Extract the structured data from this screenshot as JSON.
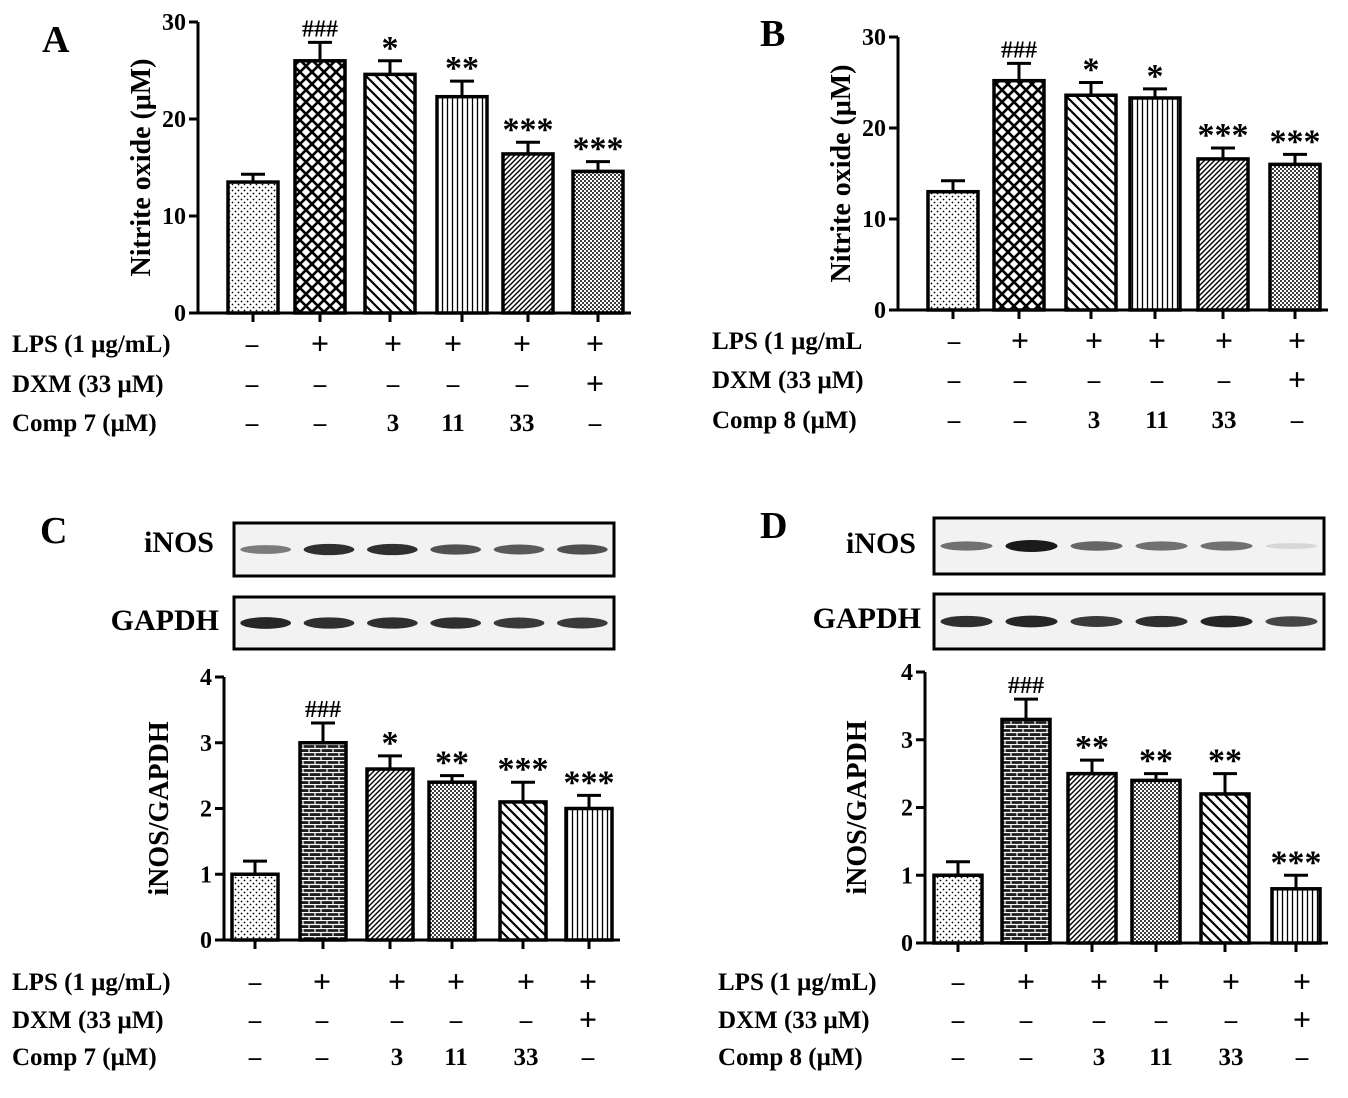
{
  "figure_labels": {
    "A": "A",
    "B": "B",
    "C": "C",
    "D": "D"
  },
  "colors": {
    "ink": "#000000",
    "bg": "#ffffff",
    "band": "#1a1a1a",
    "blot_bg": "#f2f2f2"
  },
  "chart_data": [
    {
      "id": "A",
      "type": "bar",
      "ylabel": "Nitrite oxide (μM)",
      "ylim": [
        0,
        30
      ],
      "yticks": [
        0,
        10,
        20,
        30
      ],
      "values": [
        13.5,
        26.0,
        24.6,
        22.3,
        16.4,
        14.6
      ],
      "errors": [
        0.8,
        1.9,
        1.4,
        1.6,
        1.2,
        1.0
      ],
      "sig": [
        "",
        "###",
        "*",
        "**",
        "***",
        "***"
      ],
      "patterns": [
        "dots",
        "crosshatch",
        "diag-back",
        "vertical",
        "diag-fine",
        "dense-dots"
      ],
      "conditions": [
        {
          "label": "LPS (1 μg/mL)",
          "values": [
            "-",
            "+",
            "+",
            "+",
            "+",
            "+"
          ]
        },
        {
          "label": "DXM (33 μM)",
          "values": [
            "-",
            "-",
            "-",
            "-",
            "-",
            "+"
          ]
        },
        {
          "label": "Comp 7 (μM)",
          "values": [
            "-",
            "-",
            "3",
            "11",
            "33",
            "-"
          ]
        }
      ]
    },
    {
      "id": "B",
      "type": "bar",
      "ylabel": "Nitrite oxide (μM)",
      "ylim": [
        0,
        30
      ],
      "yticks": [
        0,
        10,
        20,
        30
      ],
      "values": [
        13.0,
        25.2,
        23.6,
        23.3,
        16.6,
        16.0
      ],
      "errors": [
        1.2,
        1.9,
        1.4,
        1.0,
        1.2,
        1.1
      ],
      "sig": [
        "",
        "###",
        "*",
        "*",
        "***",
        "***"
      ],
      "patterns": [
        "dots",
        "crosshatch",
        "diag-back",
        "vertical",
        "diag-fine",
        "dense-dots"
      ],
      "conditions": [
        {
          "label": "LPS (1 μg/mL",
          "values": [
            "-",
            "+",
            "+",
            "+",
            "+",
            "+"
          ]
        },
        {
          "label": "DXM (33 μM)",
          "values": [
            "-",
            "-",
            "-",
            "-",
            "-",
            "+"
          ]
        },
        {
          "label": "Comp 8 (μM)",
          "values": [
            "-",
            "-",
            "3",
            "11",
            "33",
            "-"
          ]
        }
      ]
    },
    {
      "id": "C",
      "type": "bar",
      "ylabel": "iNOS/GAPDH",
      "ylim": [
        0,
        4
      ],
      "yticks": [
        0,
        1,
        2,
        3,
        4
      ],
      "values": [
        1.0,
        3.0,
        2.6,
        2.4,
        2.1,
        2.0
      ],
      "errors": [
        0.2,
        0.3,
        0.2,
        0.1,
        0.3,
        0.2
      ],
      "sig": [
        "",
        "###",
        "*",
        "**",
        "***",
        "***"
      ],
      "patterns": [
        "dots",
        "brick",
        "diag-fine",
        "dense-dots",
        "diag-back",
        "vertical"
      ],
      "blot": {
        "rows": [
          {
            "label": "iNOS",
            "intensities": [
              0.55,
              0.9,
              0.9,
              0.75,
              0.7,
              0.75
            ]
          },
          {
            "label": "GAPDH",
            "intensities": [
              0.95,
              0.9,
              0.9,
              0.9,
              0.85,
              0.85
            ]
          }
        ]
      },
      "conditions": [
        {
          "label": "LPS (1 μg/mL)",
          "values": [
            "-",
            "+",
            "+",
            "+",
            "+",
            "+"
          ]
        },
        {
          "label": "DXM (33 μM)",
          "values": [
            "-",
            "-",
            "-",
            "-",
            "-",
            "+"
          ]
        },
        {
          "label": "Comp 7 (μM)",
          "values": [
            "-",
            "-",
            "3",
            "11",
            "33",
            "-"
          ]
        }
      ]
    },
    {
      "id": "D",
      "type": "bar",
      "ylabel": "iNOS/GAPDH",
      "ylim": [
        0,
        4
      ],
      "yticks": [
        0,
        1,
        2,
        3,
        4
      ],
      "values": [
        1.0,
        3.3,
        2.5,
        2.4,
        2.2,
        0.8
      ],
      "errors": [
        0.2,
        0.3,
        0.2,
        0.1,
        0.3,
        0.2
      ],
      "sig": [
        "",
        "###",
        "**",
        "**",
        "**",
        "***"
      ],
      "patterns": [
        "dots",
        "brick",
        "diag-fine",
        "dense-dots",
        "diag-back",
        "vertical"
      ],
      "blot": {
        "rows": [
          {
            "label": "iNOS",
            "intensities": [
              0.6,
              1.0,
              0.65,
              0.6,
              0.6,
              0.12
            ]
          },
          {
            "label": "GAPDH",
            "intensities": [
              0.9,
              0.95,
              0.85,
              0.9,
              0.95,
              0.8
            ]
          }
        ]
      },
      "conditions": [
        {
          "label": "LPS (1 μg/mL)",
          "values": [
            "-",
            "+",
            "+",
            "+",
            "+",
            "+"
          ]
        },
        {
          "label": "DXM (33 μM)",
          "values": [
            "-",
            "-",
            "-",
            "-",
            "-",
            "+"
          ]
        },
        {
          "label": "Comp 8 (μM)",
          "values": [
            "-",
            "-",
            "3",
            "11",
            "33",
            "-"
          ]
        }
      ]
    }
  ]
}
